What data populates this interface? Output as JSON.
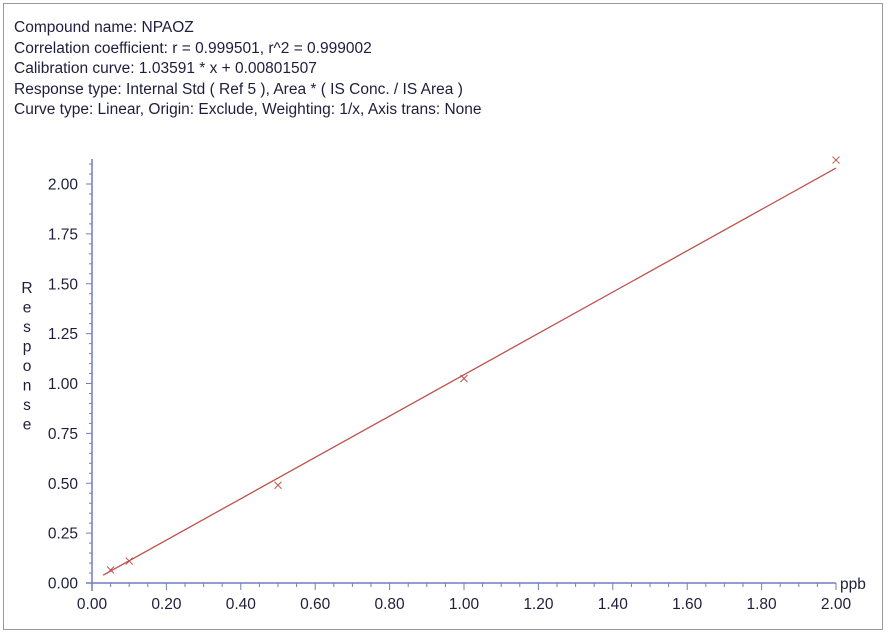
{
  "header": {
    "compound": "Compound name: NPAOZ",
    "correlation": "Correlation coefficient: r = 0.999501, r^2 = 0.999002",
    "calibration": "Calibration curve: 1.03591 * x + 0.00801507",
    "response_type": "Response type: Internal Std ( Ref 5 ), Area * ( IS Conc. / IS Area )",
    "curve_type": "Curve type: Linear, Origin: Exclude, Weighting: 1/x, Axis trans: None"
  },
  "chart_data": {
    "type": "scatter",
    "xlabel": "ppb",
    "ylabel": "Response",
    "xlim": [
      0,
      2.0
    ],
    "ylim": [
      0,
      2.15
    ],
    "x_ticks": [
      "0.00",
      "0.20",
      "0.40",
      "0.60",
      "0.80",
      "1.00",
      "1.20",
      "1.40",
      "1.60",
      "1.80",
      "2.00"
    ],
    "y_ticks": [
      "0.00",
      "0.25",
      "0.50",
      "0.75",
      "1.00",
      "1.25",
      "1.50",
      "1.75",
      "2.00"
    ],
    "series": [
      {
        "points": [
          {
            "x": 0.05,
            "y": 0.065
          },
          {
            "x": 0.1,
            "y": 0.11
          },
          {
            "x": 0.5,
            "y": 0.49
          },
          {
            "x": 1.0,
            "y": 1.025
          },
          {
            "x": 2.0,
            "y": 2.12
          }
        ],
        "marker": "x",
        "color": "#c0504d"
      }
    ],
    "fit_line": {
      "slope": 1.03591,
      "intercept": 0.00801507,
      "x_range": [
        0.0,
        2.0
      ],
      "color": "#c0504d"
    },
    "axis_color": "#6f7fbf",
    "text_color": "#1e1e3c"
  }
}
